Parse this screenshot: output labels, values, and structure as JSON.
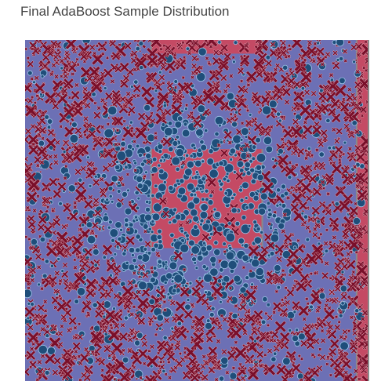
{
  "chart_data": {
    "type": "scatter",
    "title": "Final AdaBoost Sample Distribution",
    "xlabel": "",
    "ylabel": "",
    "xlim": [
      -1.0,
      1.0
    ],
    "ylim": [
      -1.0,
      1.0
    ],
    "grid": false,
    "legend": "none",
    "colors": {
      "region_negative": "#6c70b5",
      "region_positive": "#c44a64",
      "circle_fill": "#1f4e7a",
      "circle_stroke": "#9ec3e6",
      "cross_fill": "#7a0f2a",
      "cross_stroke": "#e8b4c0",
      "boundary": "#8a8a8a"
    },
    "decision_regions": [
      {
        "class": "+1",
        "x0": -0.26,
        "x1": 0.38,
        "y0": -0.22,
        "y1": 0.36
      },
      {
        "class": "+1",
        "x0": 0.94,
        "x1": 1.0,
        "y0": -1.0,
        "y1": 1.0
      },
      {
        "class": "+1",
        "x0": -0.26,
        "x1": 0.38,
        "y0": 0.92,
        "y1": 1.0
      }
    ],
    "sample_count_estimate": 3000,
    "series": [
      {
        "marker": "circle",
        "class_region": "inside radius ~0.55 of origin",
        "size_range": [
          4,
          12
        ]
      },
      {
        "marker": "x",
        "class_region": "outside radius ~0.55 of origin",
        "size_range": [
          4,
          16
        ]
      }
    ]
  }
}
